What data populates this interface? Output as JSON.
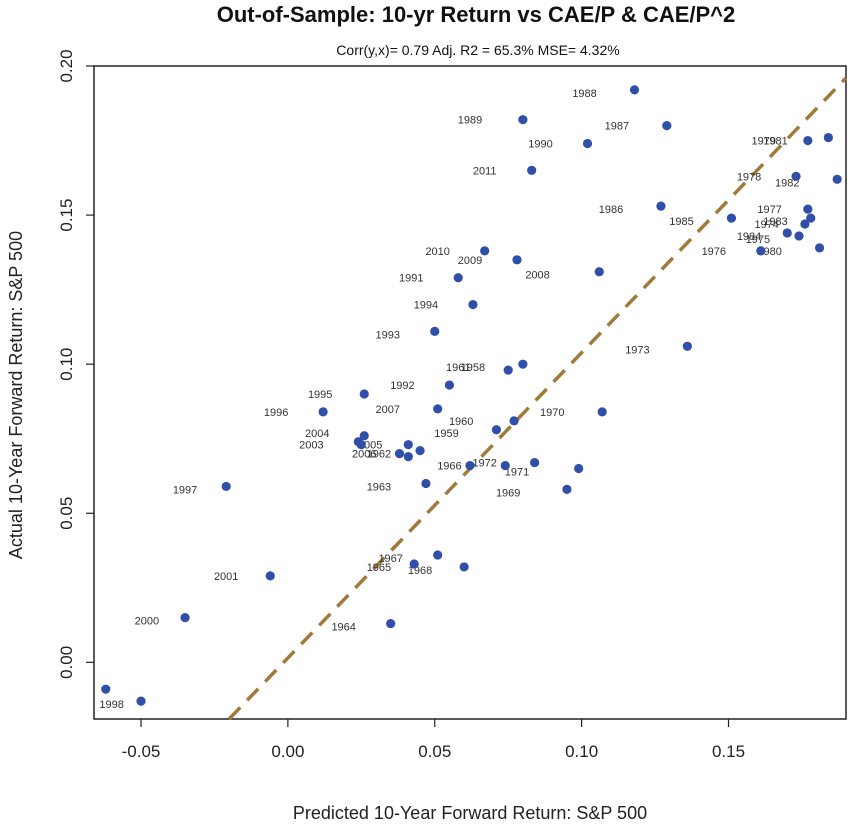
{
  "chart_data": {
    "type": "scatter",
    "title": "Out-of-Sample: 10-yr Return vs CAE/P & CAE/P^2",
    "subtitle": "Corr(y,x)= 0.79  Adj. R2 = 65.3%   MSE= 4.32%",
    "xlabel": "Predicted 10-Year Forward Return: S&P 500",
    "ylabel": "Actual 10-Year Forward Return: S&P 500",
    "xlim": [
      -0.066,
      0.19
    ],
    "ylim": [
      -0.019,
      0.2
    ],
    "x_ticks": [
      {
        "value": -0.05,
        "label": "-0.05"
      },
      {
        "value": 0.0,
        "label": "0.00"
      },
      {
        "value": 0.05,
        "label": "0.05"
      },
      {
        "value": 0.1,
        "label": "0.10"
      },
      {
        "value": 0.15,
        "label": "0.15"
      }
    ],
    "y_ticks": [
      {
        "value": 0.0,
        "label": "0.00"
      },
      {
        "value": 0.05,
        "label": "0.05"
      },
      {
        "value": 0.1,
        "label": "0.10"
      },
      {
        "value": 0.15,
        "label": "0.15"
      },
      {
        "value": 0.2,
        "label": "0.20"
      }
    ],
    "grid": false,
    "point_color": "#2f4fa8",
    "line_color": "#a07a3a",
    "fit_line": {
      "style": "dashed",
      "x": [
        -0.02,
        0.19
      ],
      "y": [
        -0.019,
        0.196
      ]
    },
    "points": [
      {
        "label": "1998",
        "x": -0.062,
        "y": -0.009,
        "lx": -0.06,
        "ly": -0.014
      },
      {
        "label": "",
        "x": -0.05,
        "y": -0.013
      },
      {
        "label": "2000",
        "x": -0.035,
        "y": 0.015,
        "lx": -0.048,
        "ly": 0.014
      },
      {
        "label": "2001",
        "x": -0.006,
        "y": 0.029,
        "lx": -0.021,
        "ly": 0.029
      },
      {
        "label": "1997",
        "x": -0.021,
        "y": 0.059,
        "lx": -0.035,
        "ly": 0.058
      },
      {
        "label": "1964",
        "x": 0.035,
        "y": 0.013,
        "lx": 0.019,
        "ly": 0.012
      },
      {
        "label": "1967",
        "x": 0.051,
        "y": 0.036,
        "lx": 0.035,
        "ly": 0.035
      },
      {
        "label": "1965",
        "x": 0.043,
        "y": 0.033,
        "lx": 0.031,
        "ly": 0.032
      },
      {
        "label": "1968",
        "x": 0.06,
        "y": 0.032,
        "lx": 0.045,
        "ly": 0.031
      },
      {
        "label": "1963",
        "x": 0.047,
        "y": 0.06,
        "lx": 0.031,
        "ly": 0.059
      },
      {
        "label": "1969",
        "x": 0.095,
        "y": 0.058,
        "lx": 0.075,
        "ly": 0.057
      },
      {
        "label": "1971",
        "x": 0.084,
        "y": 0.067,
        "lx": 0.078,
        "ly": 0.064
      },
      {
        "label": "",
        "x": 0.099,
        "y": 0.065
      },
      {
        "label": "1966",
        "x": 0.062,
        "y": 0.066,
        "lx": 0.055,
        "ly": 0.066
      },
      {
        "label": "1972",
        "x": 0.074,
        "y": 0.066,
        "lx": 0.067,
        "ly": 0.067
      },
      {
        "label": "1962",
        "x": 0.038,
        "y": 0.07,
        "lx": 0.031,
        "ly": 0.07
      },
      {
        "label": "",
        "x": 0.041,
        "y": 0.069
      },
      {
        "label": "",
        "x": 0.045,
        "y": 0.071
      },
      {
        "label": "2005",
        "x": 0.041,
        "y": 0.073,
        "lx": 0.028,
        "ly": 0.073
      },
      {
        "label": "2006",
        "x": 0.025,
        "y": 0.073,
        "lx": 0.026,
        "ly": 0.07
      },
      {
        "label": "2003",
        "x": 0.024,
        "y": 0.074,
        "lx": 0.008,
        "ly": 0.073
      },
      {
        "label": "2004",
        "x": 0.026,
        "y": 0.076,
        "lx": 0.01,
        "ly": 0.077
      },
      {
        "label": "1959",
        "x": 0.071,
        "y": 0.078,
        "lx": 0.054,
        "ly": 0.077
      },
      {
        "label": "1960",
        "x": 0.077,
        "y": 0.081,
        "lx": 0.059,
        "ly": 0.081
      },
      {
        "label": "1970",
        "x": 0.107,
        "y": 0.084,
        "lx": 0.09,
        "ly": 0.084
      },
      {
        "label": "2007",
        "x": 0.051,
        "y": 0.085,
        "lx": 0.034,
        "ly": 0.085
      },
      {
        "label": "1996",
        "x": 0.012,
        "y": 0.084,
        "lx": -0.004,
        "ly": 0.084
      },
      {
        "label": "1995",
        "x": 0.026,
        "y": 0.09,
        "lx": 0.011,
        "ly": 0.09
      },
      {
        "label": "1992",
        "x": 0.055,
        "y": 0.093,
        "lx": 0.039,
        "ly": 0.093
      },
      {
        "label": "1961",
        "x": 0.075,
        "y": 0.098,
        "lx": 0.058,
        "ly": 0.099
      },
      {
        "label": "1958",
        "x": 0.08,
        "y": 0.1,
        "lx": 0.063,
        "ly": 0.099
      },
      {
        "label": "1973",
        "x": 0.136,
        "y": 0.106,
        "lx": 0.119,
        "ly": 0.105
      },
      {
        "label": "1993",
        "x": 0.05,
        "y": 0.111,
        "lx": 0.034,
        "ly": 0.11
      },
      {
        "label": "1994",
        "x": 0.063,
        "y": 0.12,
        "lx": 0.047,
        "ly": 0.12
      },
      {
        "label": "1991",
        "x": 0.058,
        "y": 0.129,
        "lx": 0.042,
        "ly": 0.129
      },
      {
        "label": "2008",
        "x": 0.106,
        "y": 0.131,
        "lx": 0.085,
        "ly": 0.13
      },
      {
        "label": "2009",
        "x": 0.078,
        "y": 0.135,
        "lx": 0.062,
        "ly": 0.135
      },
      {
        "label": "2010",
        "x": 0.067,
        "y": 0.138,
        "lx": 0.051,
        "ly": 0.138
      },
      {
        "label": "2011",
        "x": 0.083,
        "y": 0.165,
        "lx": 0.067,
        "ly": 0.165
      },
      {
        "label": "1990",
        "x": 0.102,
        "y": 0.174,
        "lx": 0.086,
        "ly": 0.174
      },
      {
        "label": "1989",
        "x": 0.08,
        "y": 0.182,
        "lx": 0.062,
        "ly": 0.182
      },
      {
        "label": "1987",
        "x": 0.129,
        "y": 0.18,
        "lx": 0.112,
        "ly": 0.18
      },
      {
        "label": "1988",
        "x": 0.118,
        "y": 0.192,
        "lx": 0.101,
        "ly": 0.191
      },
      {
        "label": "1986",
        "x": 0.127,
        "y": 0.153,
        "lx": 0.11,
        "ly": 0.152
      },
      {
        "label": "1985",
        "x": 0.151,
        "y": 0.149,
        "lx": 0.134,
        "ly": 0.148
      },
      {
        "label": "1976",
        "x": 0.161,
        "y": 0.138,
        "lx": 0.145,
        "ly": 0.138
      },
      {
        "label": "1980",
        "x": 0.181,
        "y": 0.139,
        "lx": 0.164,
        "ly": 0.138
      },
      {
        "label": "1984",
        "x": 0.17,
        "y": 0.144,
        "lx": 0.157,
        "ly": 0.143
      },
      {
        "label": "1975",
        "x": 0.174,
        "y": 0.143,
        "lx": 0.16,
        "ly": 0.142
      },
      {
        "label": "1974",
        "x": 0.176,
        "y": 0.147,
        "lx": 0.163,
        "ly": 0.147
      },
      {
        "label": "1983",
        "x": 0.178,
        "y": 0.149,
        "lx": 0.166,
        "ly": 0.148
      },
      {
        "label": "1977",
        "x": 0.177,
        "y": 0.152,
        "lx": 0.164,
        "ly": 0.152
      },
      {
        "label": "1978",
        "x": 0.173,
        "y": 0.163,
        "lx": 0.157,
        "ly": 0.163
      },
      {
        "label": "1982",
        "x": 0.187,
        "y": 0.162,
        "lx": 0.17,
        "ly": 0.161
      },
      {
        "label": "1979",
        "x": 0.177,
        "y": 0.175,
        "lx": 0.162,
        "ly": 0.175
      },
      {
        "label": "1981",
        "x": 0.184,
        "y": 0.176,
        "lx": 0.166,
        "ly": 0.175
      }
    ]
  }
}
